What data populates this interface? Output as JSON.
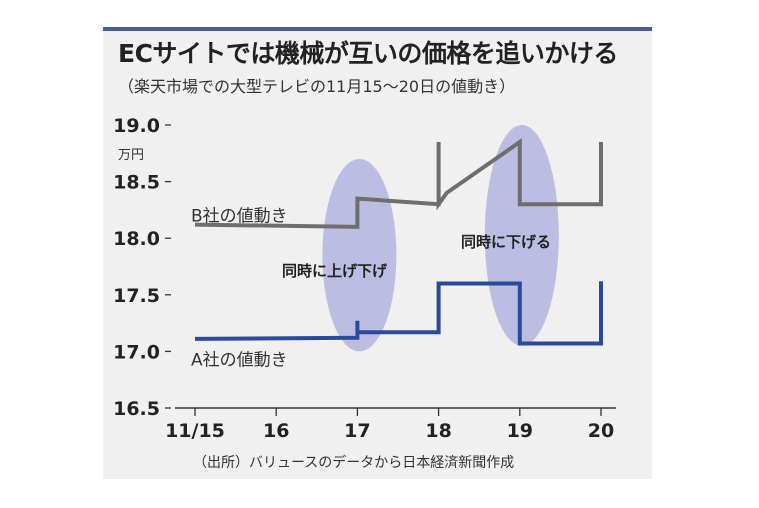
{
  "title": "ECサイトでは機械が互いの価格を追いかける",
  "subtitle": "（楽天市場での大型テレビの11月15～20日の値動き）",
  "source": "（出所）バリュースのデータから日本経済新聞作成",
  "colors": {
    "series_a": "#2b4a9a",
    "series_b": "#6e6e6e",
    "highlight": "#a9aede",
    "panel": "#f0f0f0",
    "accent": "#4a5a8e"
  },
  "chart_data": {
    "type": "line",
    "unit": "万円",
    "x_ticks": [
      "11/15",
      "16",
      "17",
      "18",
      "19",
      "20"
    ],
    "y_ticks": [
      "19.0",
      "18.5",
      "18.0",
      "17.5",
      "17.0",
      "16.5"
    ],
    "xlim": [
      15,
      20
    ],
    "ylim": [
      16.5,
      19.0
    ],
    "grid": false,
    "series": [
      {
        "name": "B社の値動き",
        "color": "#6e6e6e",
        "points": [
          [
            15,
            18.12
          ],
          [
            17,
            18.1
          ],
          [
            17,
            18.35
          ],
          [
            18,
            18.3
          ],
          [
            18,
            18.85
          ],
          [
            18,
            18.3
          ],
          [
            18.1,
            18.4
          ],
          [
            19,
            18.85
          ],
          [
            19,
            18.3
          ],
          [
            20,
            18.3
          ],
          [
            20,
            18.85
          ]
        ]
      },
      {
        "name": "A社の値動き",
        "color": "#2b4a9a",
        "points": [
          [
            15,
            17.11
          ],
          [
            17,
            17.12
          ],
          [
            17,
            17.27
          ],
          [
            17,
            17.17
          ],
          [
            18,
            17.17
          ],
          [
            18,
            17.6
          ],
          [
            19,
            17.6
          ],
          [
            19,
            17.07
          ],
          [
            20,
            17.07
          ],
          [
            20,
            17.62
          ]
        ]
      }
    ],
    "annotations": [
      {
        "text": "同時に上げ下げ",
        "x": 17
      },
      {
        "text": "同時に下げる",
        "x": 19
      }
    ],
    "highlights": [
      {
        "x": 17,
        "y_range": [
          17.0,
          18.7
        ]
      },
      {
        "x": 19,
        "y_range": [
          17.05,
          19.0
        ]
      }
    ]
  }
}
